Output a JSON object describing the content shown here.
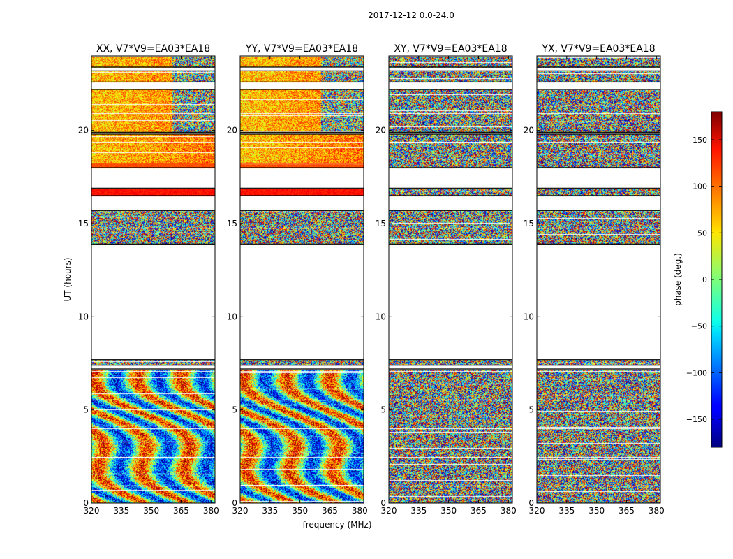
{
  "chart_data": {
    "type": "heatmap",
    "suptitle": "2017-12-12 0.0-24.0",
    "xlabel": "frequency (MHz)",
    "ylabel": "UT (hours)",
    "xlim": [
      320,
      382
    ],
    "ylim": [
      0,
      24
    ],
    "xticks": [
      320,
      335,
      350,
      365,
      380
    ],
    "yticks": [
      0,
      5,
      10,
      15,
      20
    ],
    "panels": [
      {
        "title": "XX, V7*V9=EA03*EA18",
        "polarization": "XX",
        "show_ylabel": true,
        "show_xlabel": false
      },
      {
        "title": "YY, V7*V9=EA03*EA18",
        "polarization": "YY",
        "show_ylabel": false,
        "show_xlabel": true
      },
      {
        "title": "XY, V7*V9=EA03*EA18",
        "polarization": "XY",
        "show_ylabel": false,
        "show_xlabel": false
      },
      {
        "title": "YX, V7*V9=EA03*EA18",
        "polarization": "YX",
        "show_ylabel": false,
        "show_xlabel": false
      }
    ],
    "data_segments_ut_hours": [
      [
        0.0,
        7.2
      ],
      [
        7.4,
        7.7
      ],
      [
        13.9,
        15.7
      ],
      [
        16.5,
        16.9
      ],
      [
        18.0,
        19.8
      ],
      [
        19.9,
        22.2
      ],
      [
        22.6,
        23.2
      ],
      [
        23.4,
        24.0
      ]
    ],
    "colorbar": {
      "label": "phase (deg.)",
      "range": [
        -180,
        180
      ],
      "ticks": [
        -150,
        -100,
        -50,
        0,
        50,
        100,
        150
      ],
      "tick_labels": [
        "−150",
        "−100",
        "−50",
        "0",
        "50",
        "100",
        "150"
      ],
      "colormap": "jet"
    }
  }
}
